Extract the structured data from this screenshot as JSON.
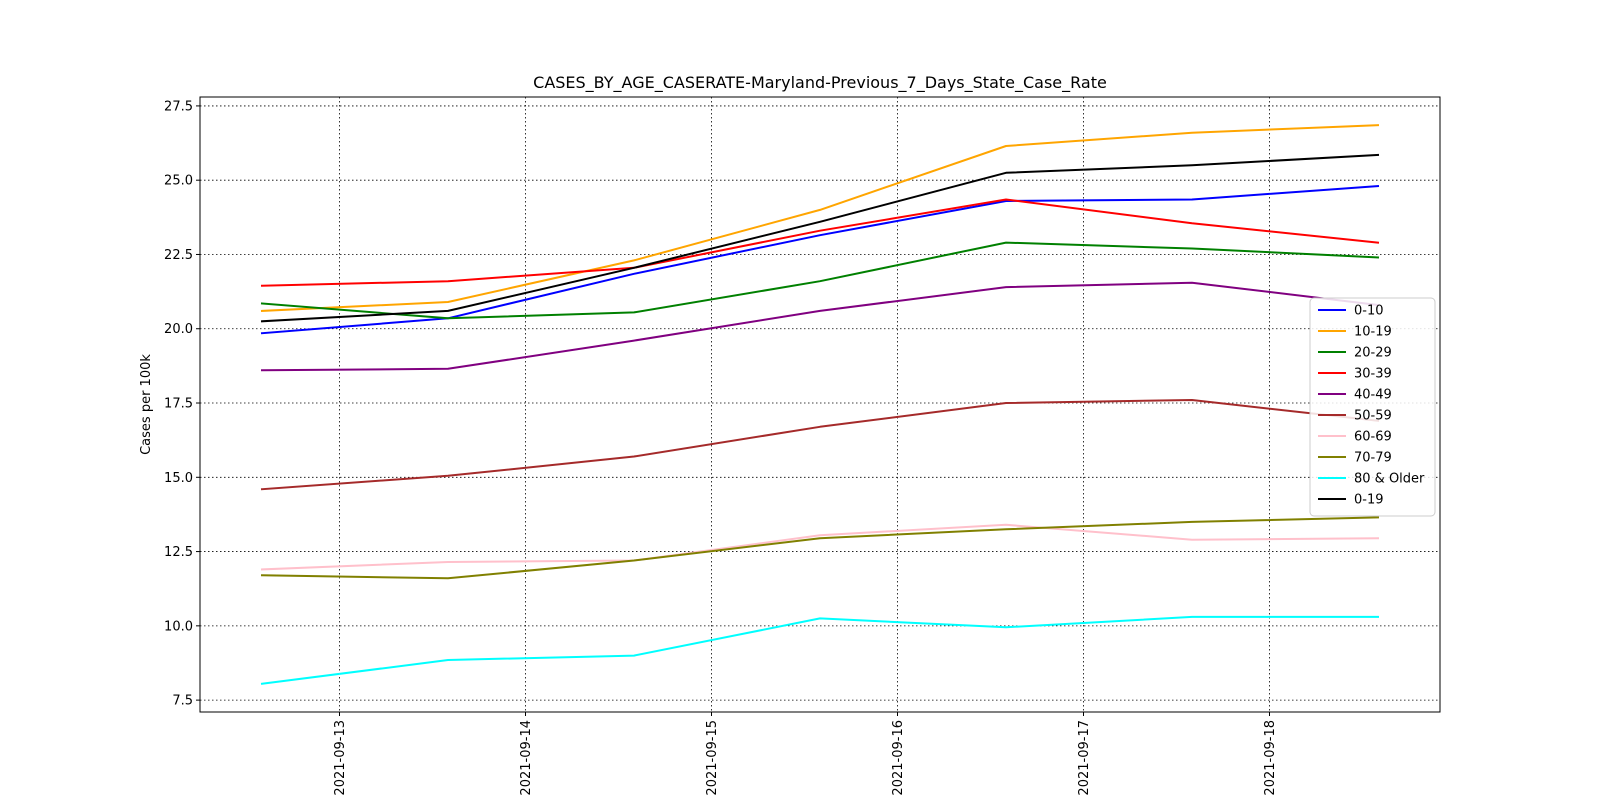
{
  "chart_data": {
    "type": "line",
    "title": "CASES_BY_AGE_CASERATE-Maryland-Previous_7_Days_State_Case_Rate",
    "xlabel": "",
    "ylabel": "Cases per 100k",
    "x": [
      "2021-09-12 14:00",
      "2021-09-13 14:00",
      "2021-09-14 14:00",
      "2021-09-15 14:00",
      "2021-09-16 14:00",
      "2021-09-17 14:00",
      "2021-09-18 14:00"
    ],
    "x_ticks": [
      "2021-09-13",
      "2021-09-14",
      "2021-09-15",
      "2021-09-16",
      "2021-09-17",
      "2021-09-18"
    ],
    "xlim": [
      "2021-09-12 06:00",
      "2021-09-18 22:00"
    ],
    "y_ticks": [
      7.5,
      10.0,
      12.5,
      15.0,
      17.5,
      20.0,
      22.5,
      25.0,
      27.5
    ],
    "ylim": [
      7.1,
      27.8
    ],
    "grid": true,
    "legend_position": "center-right",
    "series": [
      {
        "name": "0-10",
        "color": "#0000ff",
        "values": [
          19.85,
          20.35,
          21.85,
          23.15,
          24.3,
          24.35,
          24.8
        ]
      },
      {
        "name": "10-19",
        "color": "#ffa500",
        "values": [
          20.6,
          20.9,
          22.3,
          24.0,
          26.15,
          26.6,
          26.85
        ]
      },
      {
        "name": "20-29",
        "color": "#008000",
        "values": [
          20.85,
          20.35,
          20.55,
          21.6,
          22.9,
          22.7,
          22.4
        ]
      },
      {
        "name": "30-39",
        "color": "#ff0000",
        "values": [
          21.45,
          21.6,
          22.05,
          23.3,
          24.35,
          23.55,
          22.9
        ]
      },
      {
        "name": "40-49",
        "color": "#800080",
        "values": [
          18.6,
          18.65,
          19.6,
          20.6,
          21.4,
          21.55,
          20.8
        ]
      },
      {
        "name": "50-59",
        "color": "#a52a2a",
        "values": [
          14.6,
          15.05,
          15.7,
          16.7,
          17.5,
          17.6,
          16.9
        ]
      },
      {
        "name": "60-69",
        "color": "#ffc0cb",
        "values": [
          11.9,
          12.15,
          12.2,
          13.05,
          13.4,
          12.9,
          12.95
        ]
      },
      {
        "name": "70-79",
        "color": "#808000",
        "values": [
          11.7,
          11.6,
          12.2,
          12.95,
          13.25,
          13.5,
          13.65
        ]
      },
      {
        "name": "80 & Older",
        "color": "#00ffff",
        "values": [
          8.05,
          8.85,
          9.0,
          10.25,
          9.95,
          10.3,
          10.3
        ]
      },
      {
        "name": "0-19",
        "color": "#000000",
        "values": [
          20.25,
          20.6,
          22.05,
          23.6,
          25.25,
          25.5,
          25.85
        ]
      }
    ]
  }
}
